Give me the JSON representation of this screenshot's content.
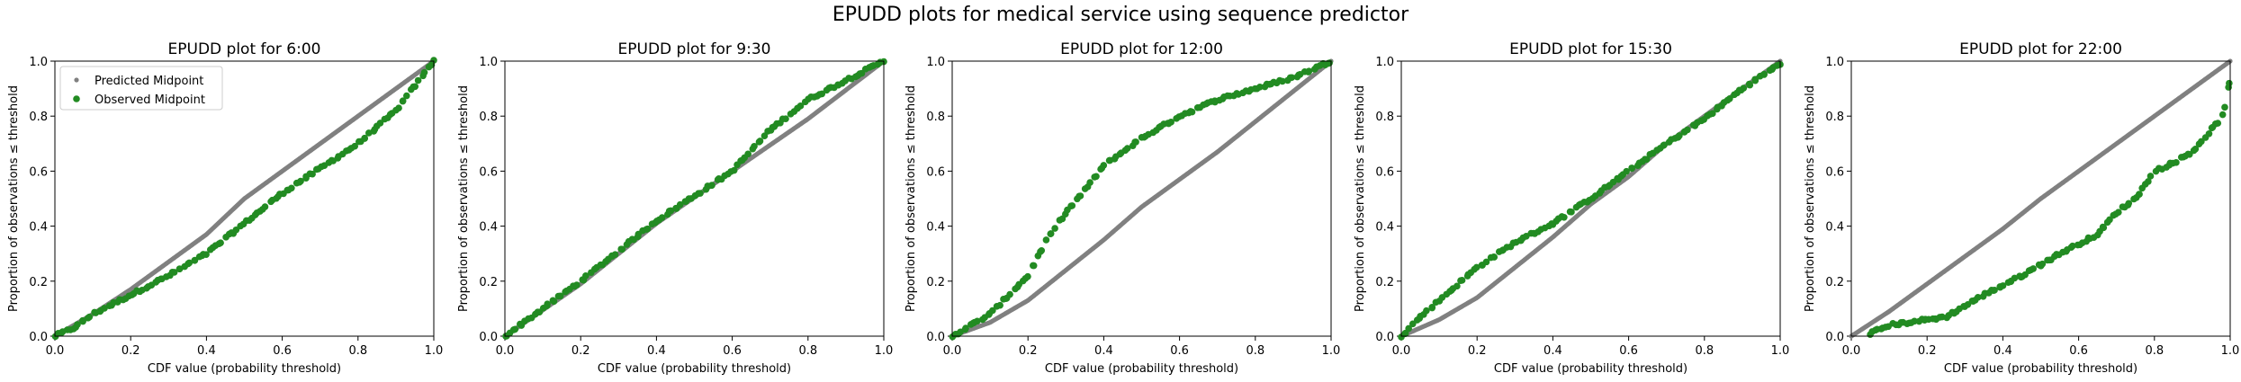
{
  "figure": {
    "title": "EPUDD plots for medical service using sequence predictor",
    "colors": {
      "predicted": "#808080",
      "observed": "#228b22",
      "axis": "#000000"
    }
  },
  "chart_data": [
    {
      "type": "scatter",
      "title": "EPUDD plot for 6:00",
      "xlabel": "CDF value (probability threshold)",
      "ylabel": "Proportion of observations ≤ threshold",
      "xlim": [
        0,
        1
      ],
      "ylim": [
        0,
        1
      ],
      "xticks": [
        "0.0",
        "0.2",
        "0.4",
        "0.6",
        "0.8",
        "1.0"
      ],
      "yticks": [
        "0.0",
        "0.2",
        "0.4",
        "0.6",
        "0.8",
        "1.0"
      ],
      "grid": false,
      "legend": {
        "placement": "top-left",
        "entries": [
          "Predicted Midpoint",
          "Observed Midpoint"
        ]
      },
      "series": [
        {
          "name": "Predicted Midpoint",
          "marker": "small",
          "color": "#808080",
          "curve": [
            [
              0,
              0
            ],
            [
              0.1,
              0.08
            ],
            [
              0.2,
              0.17
            ],
            [
              0.3,
              0.27
            ],
            [
              0.4,
              0.37
            ],
            [
              0.5,
              0.5
            ],
            [
              0.6,
              0.6
            ],
            [
              0.7,
              0.7
            ],
            [
              0.8,
              0.8
            ],
            [
              0.9,
              0.9
            ],
            [
              1,
              1
            ]
          ]
        },
        {
          "name": "Observed Midpoint",
          "marker": "large",
          "color": "#228b22",
          "curve": [
            [
              0,
              0
            ],
            [
              0.05,
              0.03
            ],
            [
              0.1,
              0.08
            ],
            [
              0.2,
              0.15
            ],
            [
              0.3,
              0.22
            ],
            [
              0.4,
              0.3
            ],
            [
              0.5,
              0.41
            ],
            [
              0.6,
              0.52
            ],
            [
              0.7,
              0.61
            ],
            [
              0.8,
              0.7
            ],
            [
              0.9,
              0.82
            ],
            [
              1,
              1
            ]
          ]
        }
      ]
    },
    {
      "type": "scatter",
      "title": "EPUDD plot for 9:30",
      "xlabel": "CDF value (probability threshold)",
      "ylabel": "Proportion of observations ≤ threshold",
      "xlim": [
        0,
        1
      ],
      "ylim": [
        0,
        1
      ],
      "xticks": [
        "0.0",
        "0.2",
        "0.4",
        "0.6",
        "0.8",
        "1.0"
      ],
      "yticks": [
        "0.0",
        "0.2",
        "0.4",
        "0.6",
        "0.8",
        "1.0"
      ],
      "grid": false,
      "series": [
        {
          "name": "Predicted Midpoint",
          "marker": "small",
          "color": "#808080",
          "curve": [
            [
              0,
              0
            ],
            [
              0.2,
              0.19
            ],
            [
              0.4,
              0.41
            ],
            [
              0.6,
              0.6
            ],
            [
              0.8,
              0.79
            ],
            [
              1,
              1
            ]
          ]
        },
        {
          "name": "Observed Midpoint",
          "marker": "large",
          "color": "#228b22",
          "curve": [
            [
              0,
              0
            ],
            [
              0.1,
              0.1
            ],
            [
              0.2,
              0.2
            ],
            [
              0.3,
              0.31
            ],
            [
              0.4,
              0.42
            ],
            [
              0.5,
              0.51
            ],
            [
              0.6,
              0.6
            ],
            [
              0.7,
              0.75
            ],
            [
              0.8,
              0.86
            ],
            [
              0.9,
              0.93
            ],
            [
              1,
              1
            ]
          ]
        }
      ]
    },
    {
      "type": "scatter",
      "title": "EPUDD plot for 12:00",
      "xlabel": "CDF value (probability threshold)",
      "ylabel": "Proportion of observations ≤ threshold",
      "xlim": [
        0,
        1
      ],
      "ylim": [
        0,
        1
      ],
      "xticks": [
        "0.0",
        "0.2",
        "0.4",
        "0.6",
        "0.8",
        "1.0"
      ],
      "yticks": [
        "0.0",
        "0.2",
        "0.4",
        "0.6",
        "0.8",
        "1.0"
      ],
      "grid": false,
      "series": [
        {
          "name": "Predicted Midpoint",
          "marker": "small",
          "color": "#808080",
          "curve": [
            [
              0,
              0
            ],
            [
              0.1,
              0.05
            ],
            [
              0.2,
              0.13
            ],
            [
              0.3,
              0.24
            ],
            [
              0.4,
              0.35
            ],
            [
              0.5,
              0.47
            ],
            [
              0.6,
              0.57
            ],
            [
              0.7,
              0.67
            ],
            [
              0.8,
              0.78
            ],
            [
              0.9,
              0.89
            ],
            [
              1,
              1
            ]
          ]
        },
        {
          "name": "Observed Midpoint",
          "marker": "large",
          "color": "#228b22",
          "curve": [
            [
              0,
              0
            ],
            [
              0.1,
              0.08
            ],
            [
              0.2,
              0.22
            ],
            [
              0.25,
              0.35
            ],
            [
              0.3,
              0.45
            ],
            [
              0.35,
              0.53
            ],
            [
              0.4,
              0.62
            ],
            [
              0.5,
              0.72
            ],
            [
              0.6,
              0.8
            ],
            [
              0.7,
              0.86
            ],
            [
              0.8,
              0.9
            ],
            [
              0.9,
              0.94
            ],
            [
              1,
              1
            ]
          ]
        }
      ]
    },
    {
      "type": "scatter",
      "title": "EPUDD plot for 15:30",
      "xlabel": "CDF value (probability threshold)",
      "ylabel": "Proportion of observations ≤ threshold",
      "xlim": [
        0,
        1
      ],
      "ylim": [
        0,
        1
      ],
      "xticks": [
        "0.0",
        "0.2",
        "0.4",
        "0.6",
        "0.8",
        "1.0"
      ],
      "yticks": [
        "0.0",
        "0.2",
        "0.4",
        "0.6",
        "0.8",
        "1.0"
      ],
      "grid": false,
      "series": [
        {
          "name": "Predicted Midpoint",
          "marker": "small",
          "color": "#808080",
          "curve": [
            [
              0,
              0
            ],
            [
              0.1,
              0.06
            ],
            [
              0.2,
              0.14
            ],
            [
              0.3,
              0.25
            ],
            [
              0.4,
              0.36
            ],
            [
              0.5,
              0.48
            ],
            [
              0.6,
              0.58
            ],
            [
              0.7,
              0.7
            ],
            [
              0.8,
              0.8
            ],
            [
              0.9,
              0.9
            ],
            [
              1,
              1
            ]
          ]
        },
        {
          "name": "Observed Midpoint",
          "marker": "large",
          "color": "#228b22",
          "curve": [
            [
              0,
              0
            ],
            [
              0.05,
              0.07
            ],
            [
              0.1,
              0.13
            ],
            [
              0.2,
              0.25
            ],
            [
              0.3,
              0.34
            ],
            [
              0.4,
              0.41
            ],
            [
              0.5,
              0.5
            ],
            [
              0.6,
              0.6
            ],
            [
              0.7,
              0.7
            ],
            [
              0.8,
              0.79
            ],
            [
              0.9,
              0.9
            ],
            [
              1,
              0.99
            ]
          ]
        }
      ]
    },
    {
      "type": "scatter",
      "title": "EPUDD plot for 22:00",
      "xlabel": "CDF value (probability threshold)",
      "ylabel": "Proportion of observations ≤ threshold",
      "xlim": [
        0,
        1
      ],
      "ylim": [
        0,
        1
      ],
      "xticks": [
        "0.0",
        "0.2",
        "0.4",
        "0.6",
        "0.8",
        "1.0"
      ],
      "yticks": [
        "0.0",
        "0.2",
        "0.4",
        "0.6",
        "0.8",
        "1.0"
      ],
      "grid": false,
      "series": [
        {
          "name": "Predicted Midpoint",
          "marker": "small",
          "color": "#808080",
          "curve": [
            [
              0,
              0
            ],
            [
              0.1,
              0.09
            ],
            [
              0.2,
              0.19
            ],
            [
              0.3,
              0.29
            ],
            [
              0.4,
              0.39
            ],
            [
              0.5,
              0.5
            ],
            [
              0.6,
              0.6
            ],
            [
              0.7,
              0.7
            ],
            [
              0.8,
              0.8
            ],
            [
              0.9,
              0.9
            ],
            [
              1,
              1
            ]
          ]
        },
        {
          "name": "Observed Midpoint",
          "marker": "large",
          "color": "#228b22",
          "curve": [
            [
              0.05,
              0.01
            ],
            [
              0.1,
              0.04
            ],
            [
              0.25,
              0.07
            ],
            [
              0.35,
              0.15
            ],
            [
              0.45,
              0.22
            ],
            [
              0.55,
              0.3
            ],
            [
              0.65,
              0.37
            ],
            [
              0.7,
              0.45
            ],
            [
              0.75,
              0.5
            ],
            [
              0.8,
              0.6
            ],
            [
              0.85,
              0.63
            ],
            [
              0.9,
              0.67
            ],
            [
              0.95,
              0.75
            ],
            [
              0.98,
              0.8
            ],
            [
              0.99,
              0.85
            ],
            [
              1,
              0.95
            ]
          ]
        }
      ]
    }
  ]
}
